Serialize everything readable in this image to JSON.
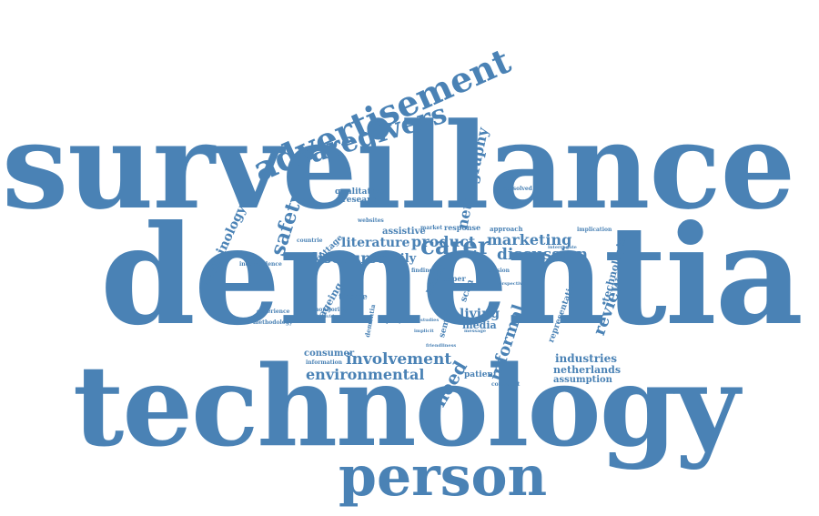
{
  "color": "#4a82b5",
  "words": {
    "surveillance": "surveillance",
    "dementia": "dementia",
    "technology": "technology",
    "person": "person",
    "advertisement": "advertisement",
    "caregivers": "caregivers",
    "carer": "carer",
    "safety": "safety",
    "terminology": "terminology",
    "literature": "literature",
    "product": "product",
    "marketing": "marketing",
    "discourse": "discourse",
    "family": "family",
    "discussion": "discussion",
    "involvement": "involvement",
    "environmental": "environmental",
    "need": "need",
    "informal": "informal",
    "living": "living",
    "media": "media",
    "industries": "industries",
    "netherlands": "netherlands",
    "assumption": "assumption",
    "consumer": "consumer",
    "patient": "patient",
    "review": "review",
    "technologies": "technologies",
    "netnography": "netnography",
    "qualitative": "qualitative",
    "research": "research",
    "assistive": "assistive",
    "response": "response",
    "approach": "approach",
    "market": "market",
    "unresolved": "unresolved",
    "implication": "implication",
    "interrogate": "interrogate",
    "countrie": "countrie",
    "cottage": "cottage",
    "websites": "websites",
    "independence": "independence",
    "ageing": "ageing",
    "theme": "theme",
    "public": "public",
    "semiotic": "semiotic",
    "experience": "experience",
    "methodology": "methodology",
    "monitoring": "monitoring",
    "information": "information",
    "individual": "individual",
    "representation": "representation",
    "comment": "comment",
    "paper": "paper",
    "finding": "finding",
    "tension": "tension",
    "scan": "scan",
    "studies": "studies",
    "message": "message",
    "implicit": "implicit",
    "friendliness": "friendliness",
    "dementia_small": "dementia",
    "capacity": "capacity",
    "perspective": "perspective"
  }
}
